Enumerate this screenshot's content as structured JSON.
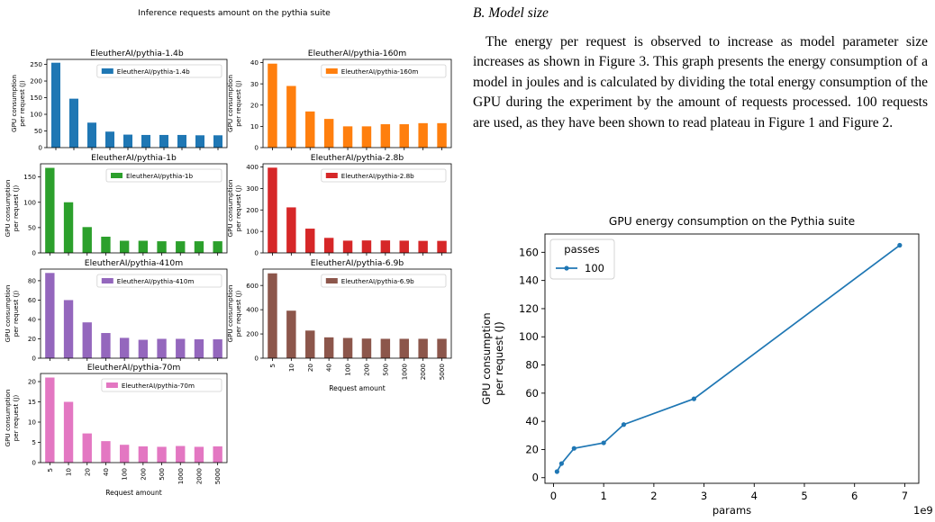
{
  "paper": {
    "section_heading": "B.  Model size",
    "paragraph": "The energy per request is observed to increase as model parameter size increases as shown in Figure 3. This graph presents the energy consumption of a model in joules and is calculated by dividing the total energy consumption of the GPU during the experiment by the amount of requests processed. 100 requests are used, as they have been shown to read plateau in Figure 1 and Figure 2."
  },
  "left_figure": {
    "suptitle": "Inference requests amount on the pythia suite"
  },
  "chart_data": [
    {
      "type": "bar",
      "title": "EleutherAI/pythia-1.4b",
      "legend": "EleutherAI/pythia-1.4b",
      "legend_loc": "upper right",
      "color": "#1f77b4",
      "categories": [
        "5",
        "10",
        "20",
        "40",
        "100",
        "200",
        "500",
        "1000",
        "2000",
        "5000"
      ],
      "values": [
        255,
        147,
        75,
        48,
        39,
        38,
        38,
        38,
        37,
        37
      ],
      "ylim": [
        0,
        265
      ],
      "yticks": [
        0,
        50,
        100,
        150,
        200,
        250
      ],
      "ylabel": [
        "GPU consumption",
        "per request (J)"
      ],
      "xlabel": "",
      "show_xticklabels": false
    },
    {
      "type": "bar",
      "title": "EleutherAI/pythia-160m",
      "legend": "EleutherAI/pythia-160m",
      "legend_loc": "upper right",
      "color": "#ff7f0e",
      "categories": [
        "5",
        "10",
        "20",
        "40",
        "100",
        "200",
        "500",
        "1000",
        "2000",
        "5000"
      ],
      "values": [
        39.5,
        29,
        17,
        13.5,
        10,
        10,
        11,
        11,
        11.5,
        11.5
      ],
      "ylim": [
        0,
        41.5
      ],
      "yticks": [
        0,
        10,
        20,
        30,
        40
      ],
      "ylabel": [
        "GPU consumption",
        "per request (J)"
      ],
      "xlabel": "",
      "show_xticklabels": false
    },
    {
      "type": "bar",
      "title": "EleutherAI/pythia-1b",
      "legend": "EleutherAI/pythia-1b",
      "legend_loc": "upper right",
      "color": "#2ca02c",
      "categories": [
        "5",
        "10",
        "20",
        "40",
        "100",
        "200",
        "500",
        "1000",
        "2000",
        "5000"
      ],
      "values": [
        168,
        100,
        51,
        32,
        24,
        24,
        23,
        23,
        23,
        23
      ],
      "ylim": [
        0,
        176
      ],
      "yticks": [
        0,
        50,
        100,
        150
      ],
      "ylabel": [
        "GPU consumption",
        "per request (J)"
      ],
      "xlabel": "",
      "show_xticklabels": false
    },
    {
      "type": "bar",
      "title": "EleutherAI/pythia-2.8b",
      "legend": "EleutherAI/pythia-2.8b",
      "legend_loc": "upper right",
      "color": "#d62728",
      "categories": [
        "5",
        "10",
        "20",
        "40",
        "100",
        "200",
        "500",
        "1000",
        "2000",
        "5000"
      ],
      "values": [
        397,
        212,
        113,
        70,
        57,
        58,
        58,
        57,
        56,
        56
      ],
      "ylim": [
        0,
        415
      ],
      "yticks": [
        0,
        100,
        200,
        300,
        400
      ],
      "ylabel": [
        "GPU consumption",
        "per request (J)"
      ],
      "xlabel": "",
      "show_xticklabels": false
    },
    {
      "type": "bar",
      "title": "EleutherAI/pythia-410m",
      "legend": "EleutherAI/pythia-410m",
      "legend_loc": "upper right",
      "color": "#9467bd",
      "categories": [
        "5",
        "10",
        "20",
        "40",
        "100",
        "200",
        "500",
        "1000",
        "2000",
        "5000"
      ],
      "values": [
        88,
        60,
        37,
        26,
        21,
        19,
        20,
        20,
        19.5,
        19.5
      ],
      "ylim": [
        0,
        92
      ],
      "yticks": [
        0,
        20,
        40,
        60,
        80
      ],
      "ylabel": [
        "GPU consumption",
        "per request (J)"
      ],
      "xlabel": "",
      "show_xticklabels": false
    },
    {
      "type": "bar",
      "title": "EleutherAI/pythia-6.9b",
      "legend": "EleutherAI/pythia-6.9b",
      "legend_loc": "upper right",
      "color": "#8c564b",
      "categories": [
        "5",
        "10",
        "20",
        "40",
        "100",
        "200",
        "500",
        "1000",
        "2000",
        "5000"
      ],
      "values": [
        700,
        392,
        228,
        172,
        167,
        162,
        160,
        160,
        160,
        160
      ],
      "ylim": [
        0,
        735
      ],
      "yticks": [
        0,
        200,
        400,
        600
      ],
      "ylabel": [
        "GPU consumption",
        "per request (J)"
      ],
      "xlabel": "Request amount",
      "show_xticklabels": true
    },
    {
      "type": "bar",
      "title": "EleutherAI/pythia-70m",
      "legend": "EleutherAI/pythia-70m",
      "legend_loc": "upper right",
      "color": "#e377c2",
      "categories": [
        "5",
        "10",
        "20",
        "40",
        "100",
        "200",
        "500",
        "1000",
        "2000",
        "5000"
      ],
      "values": [
        21,
        15,
        7.2,
        5.3,
        4.4,
        4,
        3.9,
        4.1,
        3.9,
        4
      ],
      "ylim": [
        0,
        22
      ],
      "yticks": [
        0,
        5,
        10,
        15,
        20
      ],
      "ylabel": [
        "GPU consumption",
        "per request (J)"
      ],
      "xlabel": "Request amount",
      "show_xticklabels": true
    },
    {
      "type": "line",
      "title": "GPU energy consumption on the Pythia suite",
      "xlabel": "params",
      "ylabel": [
        "GPU consumption",
        "per request (J)"
      ],
      "x_offset_label": "1e9",
      "xlim": [
        -0.17,
        7.28
      ],
      "ylim": [
        -4,
        173
      ],
      "xticks": [
        0,
        1,
        2,
        3,
        4,
        5,
        6,
        7
      ],
      "yticks": [
        0,
        20,
        40,
        60,
        80,
        100,
        120,
        140,
        160
      ],
      "legend_title": "passes",
      "legend_loc": "upper left",
      "color": "#1f77b4",
      "series": [
        {
          "name": "100",
          "x": [
            0.07,
            0.16,
            0.41,
            1.0,
            1.4,
            2.8,
            6.9
          ],
          "y": [
            4.3,
            10,
            20.8,
            24.7,
            37.7,
            56,
            165
          ]
        }
      ]
    }
  ]
}
